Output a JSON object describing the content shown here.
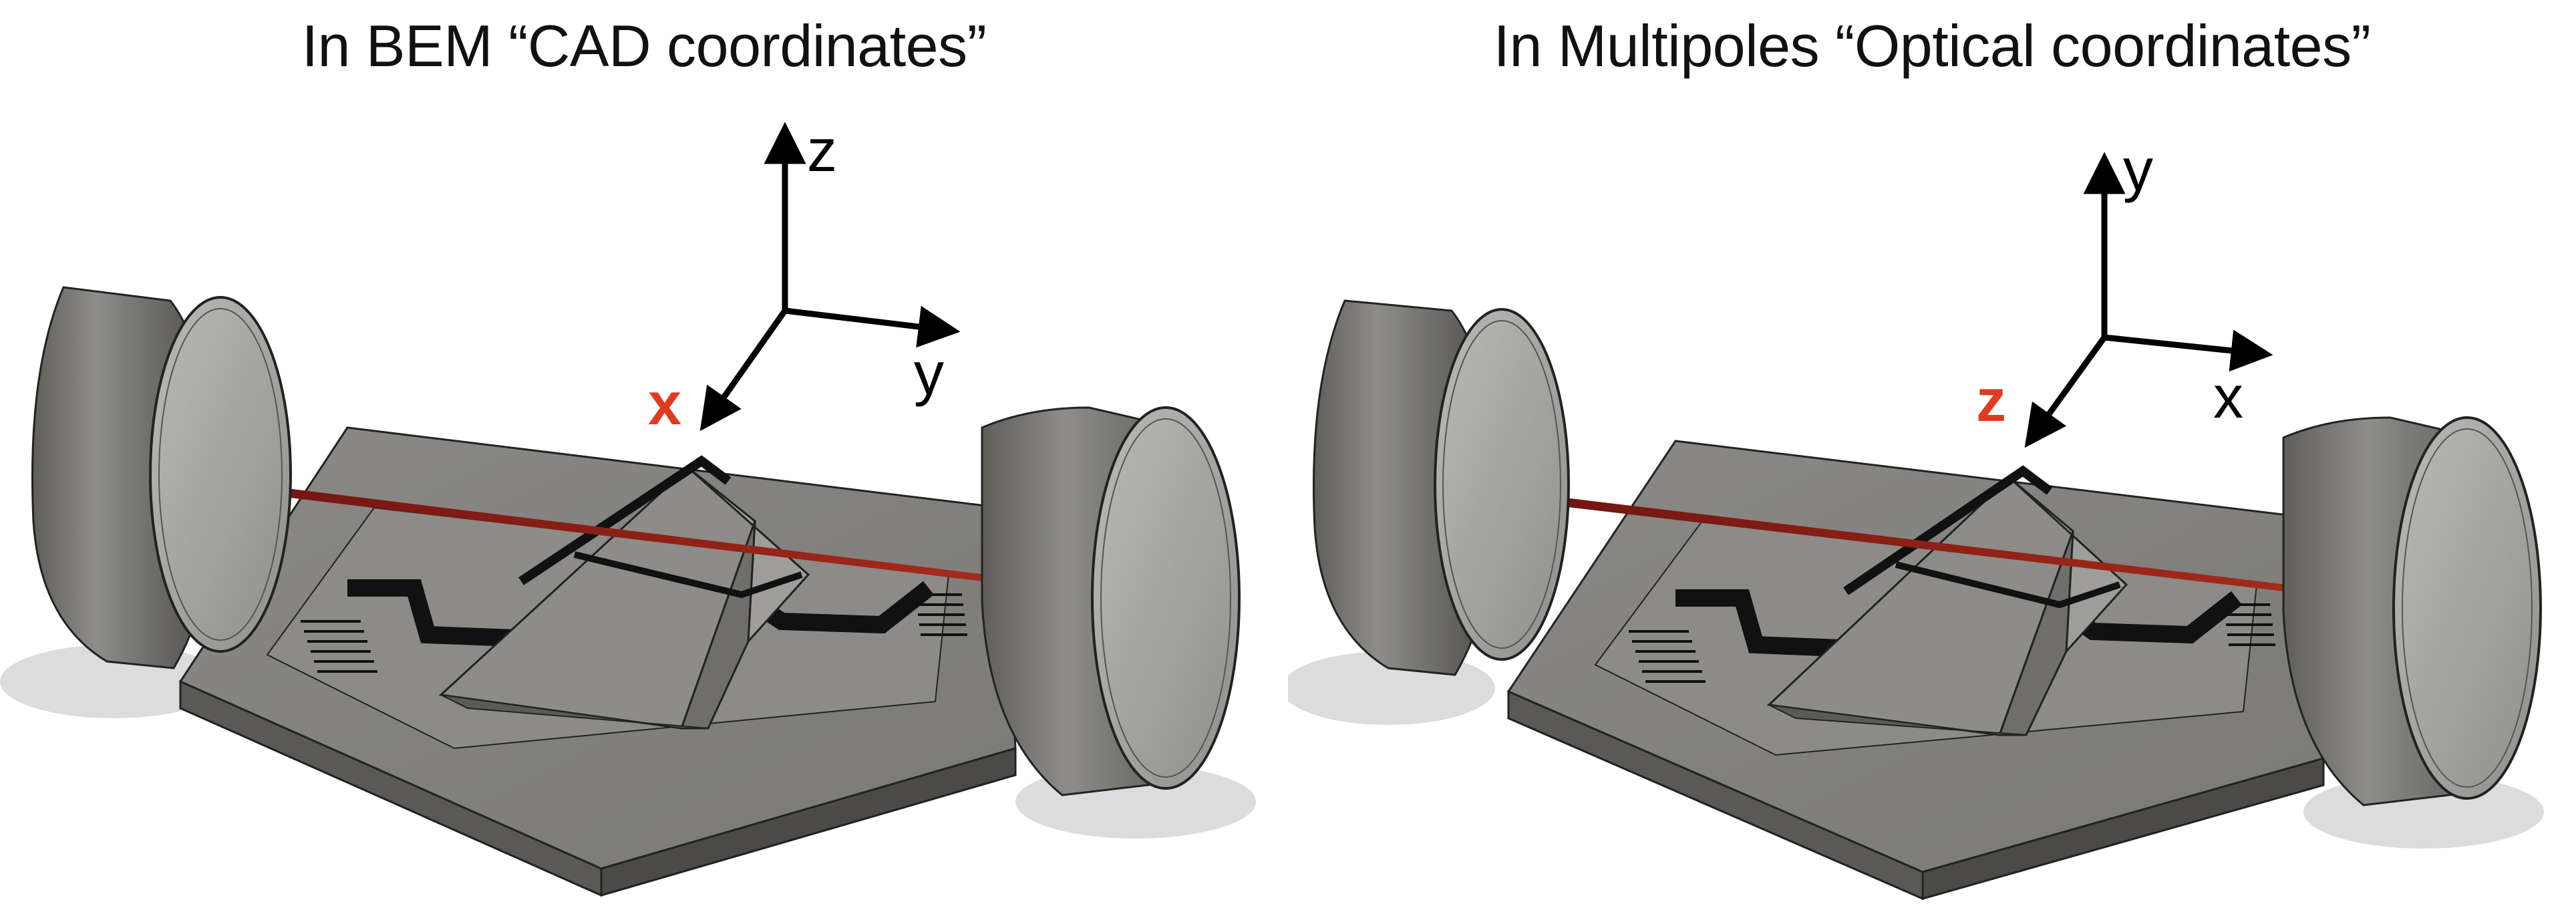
{
  "panels": [
    {
      "title": "In BEM “CAD coordinates”",
      "axes": {
        "up": "z",
        "right": "y",
        "toward": "x"
      },
      "highlight_axis": "toward"
    },
    {
      "title": "In Multipoles “Optical coordinates”",
      "axes": {
        "up": "y",
        "right": "x",
        "toward": "z"
      },
      "highlight_axis": "toward"
    }
  ],
  "colors": {
    "highlight_label": "#e03a1f",
    "laser_beam": "#8a1a10",
    "body_gray": "#7d7c78",
    "lens_face": "#a8a8a4",
    "shadow": "#d6d6d6"
  }
}
